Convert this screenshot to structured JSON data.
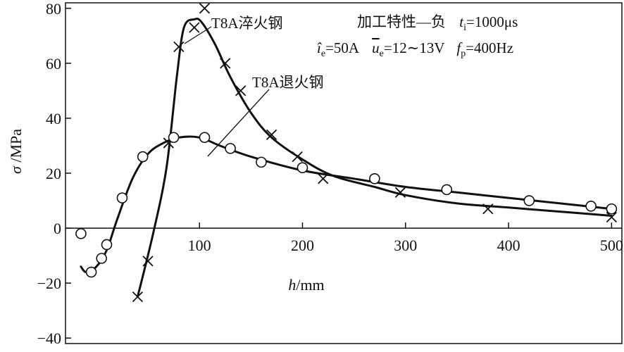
{
  "chart_data": {
    "type": "line",
    "xlabel_var": "h",
    "xlabel_unit": "/mm",
    "ylabel_var": "σ",
    "ylabel_unit": " /MPa",
    "xlim": [
      -30,
      510
    ],
    "ylim": [
      -42,
      82
    ],
    "x_ticks": [
      100,
      200,
      300,
      400,
      500
    ],
    "y_ticks": [
      -40,
      -20,
      0,
      20,
      40,
      60,
      80
    ],
    "y_tick_labels": [
      "−40",
      "−20",
      "0",
      "20",
      "40",
      "60",
      "80"
    ],
    "annotation": {
      "line1_prefix": "加工特性—负",
      "t_var": "t",
      "t_sub": "i",
      "t_val": "=1000μs",
      "ie_var": "î",
      "ie_sub": "e",
      "ie_val": "=50A",
      "ue_var": "u",
      "ue_sub": "e",
      "ue_val": "=12∼13V",
      "fp_var": "f",
      "fp_sub": "p",
      "fp_val": "=400Hz"
    },
    "series": [
      {
        "name": "T8A淬火钢",
        "marker": "x",
        "points": [
          [
            40,
            -25
          ],
          [
            50,
            -12
          ],
          [
            70,
            31
          ],
          [
            80,
            66
          ],
          [
            95,
            73
          ],
          [
            105,
            80
          ],
          [
            125,
            60
          ],
          [
            140,
            50
          ],
          [
            170,
            34
          ],
          [
            195,
            26
          ],
          [
            220,
            18
          ],
          [
            295,
            13
          ],
          [
            380,
            7
          ],
          [
            500,
            4
          ]
        ],
        "curve": [
          [
            40,
            -25
          ],
          [
            55,
            -2
          ],
          [
            68,
            22
          ],
          [
            78,
            55
          ],
          [
            85,
            73
          ],
          [
            95,
            76
          ],
          [
            102,
            75
          ],
          [
            115,
            67
          ],
          [
            130,
            55
          ],
          [
            150,
            42
          ],
          [
            170,
            33
          ],
          [
            200,
            25
          ],
          [
            230,
            19
          ],
          [
            270,
            15
          ],
          [
            300,
            12
          ],
          [
            350,
            9
          ],
          [
            400,
            7.5
          ],
          [
            450,
            6
          ],
          [
            500,
            4.5
          ]
        ]
      },
      {
        "name": "T8A退火钢",
        "marker": "o",
        "points": [
          [
            -15,
            -2
          ],
          [
            -5,
            -16
          ],
          [
            5,
            -11
          ],
          [
            10,
            -6
          ],
          [
            25,
            11
          ],
          [
            45,
            26
          ],
          [
            75,
            33
          ],
          [
            105,
            33
          ],
          [
            130,
            29
          ],
          [
            160,
            24
          ],
          [
            200,
            22
          ],
          [
            270,
            18
          ],
          [
            340,
            14
          ],
          [
            420,
            10
          ],
          [
            480,
            8
          ],
          [
            500,
            7
          ]
        ],
        "curve": [
          [
            -15,
            -14
          ],
          [
            -10,
            -16
          ],
          [
            0,
            -14
          ],
          [
            10,
            -8
          ],
          [
            20,
            3
          ],
          [
            35,
            18
          ],
          [
            50,
            27
          ],
          [
            65,
            31
          ],
          [
            80,
            33
          ],
          [
            100,
            33
          ],
          [
            120,
            30
          ],
          [
            150,
            26
          ],
          [
            200,
            21
          ],
          [
            250,
            18
          ],
          [
            300,
            15
          ],
          [
            350,
            13
          ],
          [
            400,
            11
          ],
          [
            450,
            9
          ],
          [
            500,
            7
          ]
        ]
      }
    ]
  }
}
